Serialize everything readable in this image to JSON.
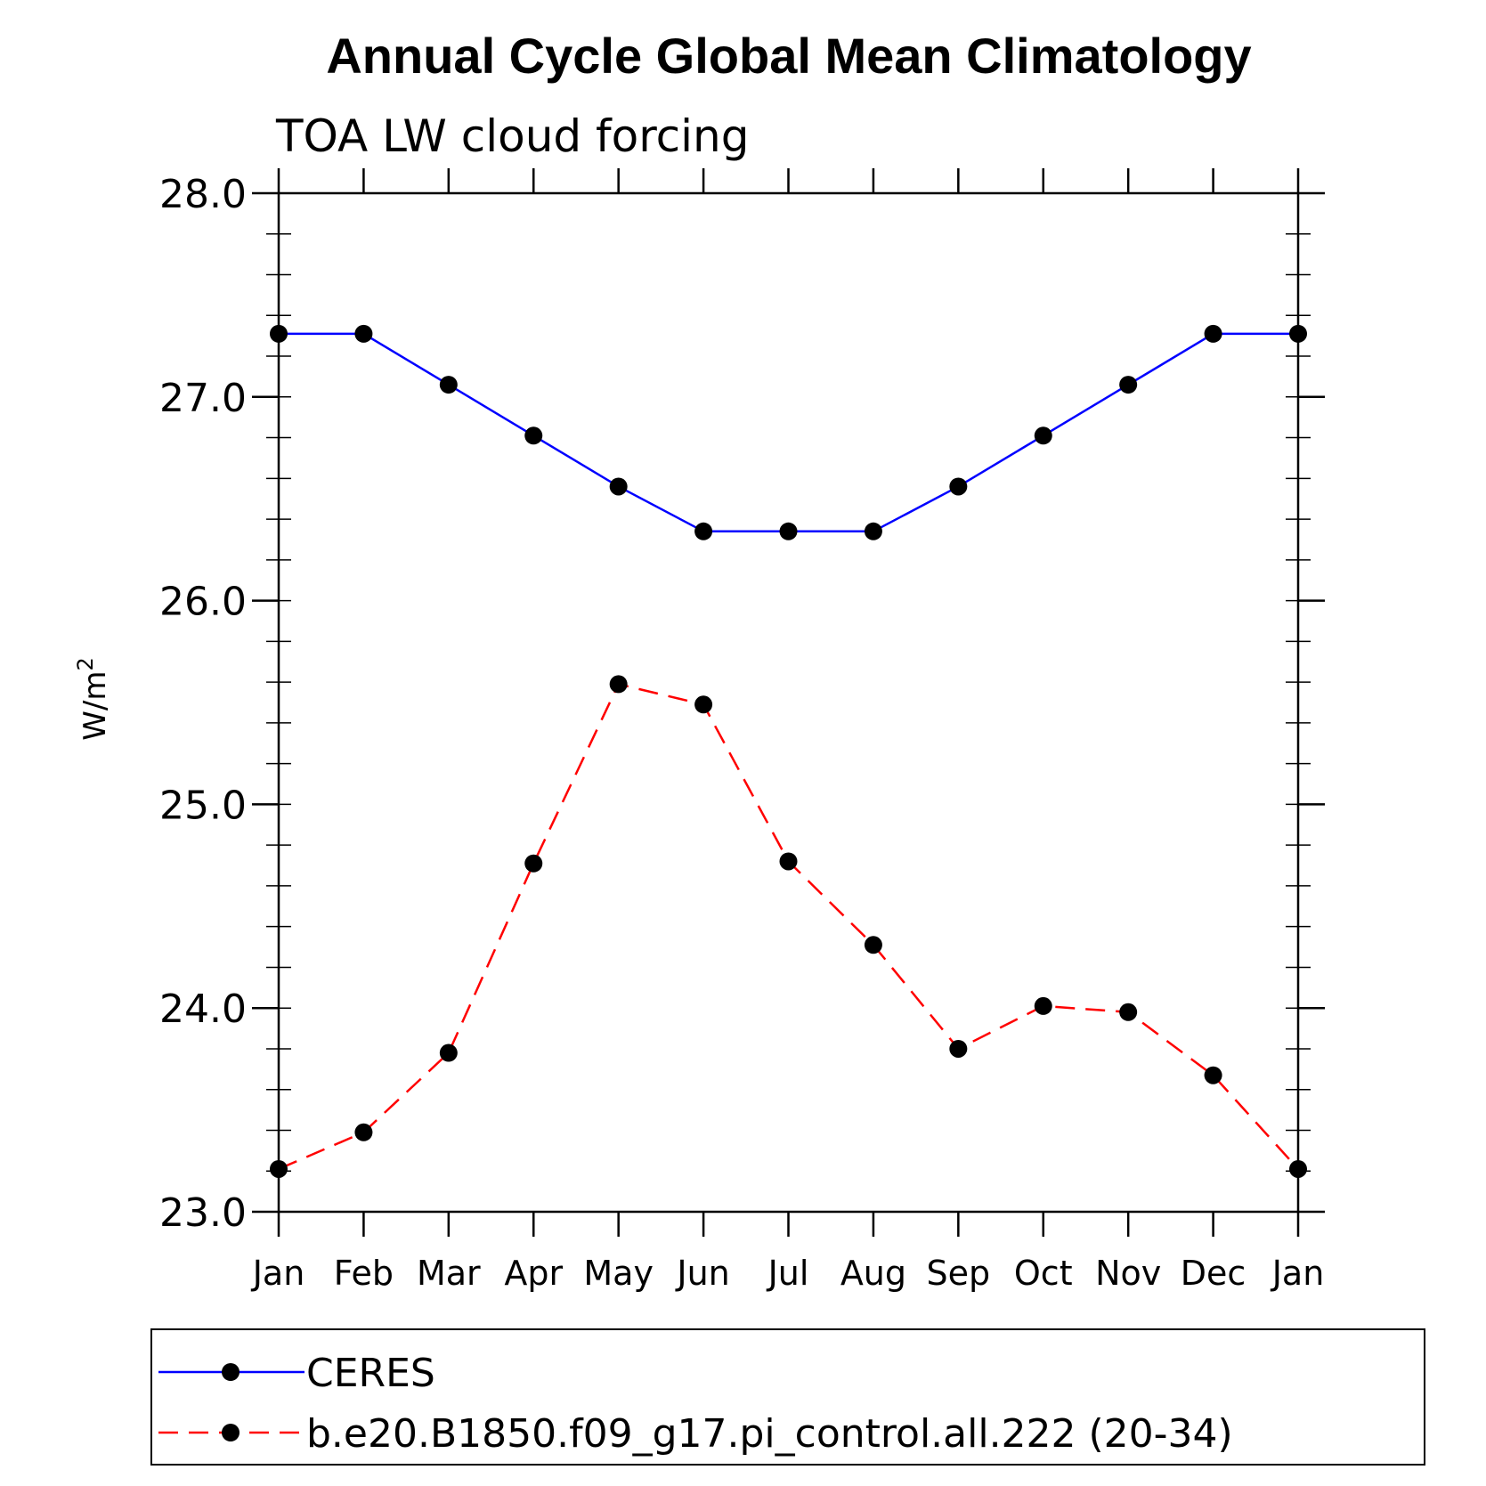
{
  "chart_data": {
    "type": "line",
    "title": "Annual Cycle Global Mean Climatology",
    "subtitle": "TOA LW cloud forcing",
    "ylabel_base": "W/m",
    "ylabel_sup": "2",
    "ylim": [
      23.0,
      28.0
    ],
    "yticks": [
      23.0,
      24.0,
      25.0,
      26.0,
      27.0,
      28.0
    ],
    "ytick_labels": [
      "23.0",
      "24.0",
      "25.0",
      "26.0",
      "27.0",
      "28.0"
    ],
    "categories": [
      "Jan",
      "Feb",
      "Mar",
      "Apr",
      "May",
      "Jun",
      "Jul",
      "Aug",
      "Sep",
      "Oct",
      "Nov",
      "Dec",
      "Jan"
    ],
    "grid": false,
    "legend_position": "bottom",
    "series": [
      {
        "name": "CERES",
        "color": "#0000ff",
        "line_style": "solid",
        "marker": "filled-circle",
        "values": [
          27.31,
          27.31,
          27.06,
          26.81,
          26.56,
          26.34,
          26.34,
          26.34,
          26.56,
          26.81,
          27.06,
          27.31,
          27.31
        ]
      },
      {
        "name": "b.e20.B1850.f09_g17.pi_control.all.222 (20-34)",
        "color": "#ff0000",
        "line_style": "dashed",
        "marker": "filled-circle",
        "values": [
          23.21,
          23.39,
          23.78,
          24.71,
          25.59,
          25.49,
          24.72,
          24.31,
          23.8,
          24.01,
          23.98,
          23.67,
          23.21
        ]
      }
    ]
  }
}
